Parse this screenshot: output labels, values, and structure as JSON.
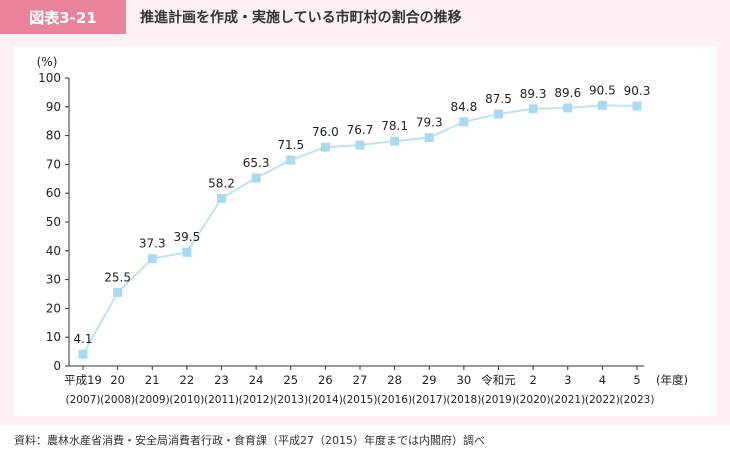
{
  "figure": {
    "badge": "図表3-21",
    "title": "推進計画を作成・実施している市町村の割合の推移",
    "source": "資料：農林水産省消費・安全局消費者行政・食育課（平成27（2015）年度までは内閣府）調べ"
  },
  "colors": {
    "badge_bg": "#e8839b",
    "frame_bg": "#fdf1f3",
    "series_line": "#bfe3f2",
    "marker": "#a9dbf0"
  },
  "chart_data": {
    "type": "line",
    "title": "推進計画を作成・実施している市町村の割合の推移",
    "ylabel": "(%)",
    "xlabel": "(年度)",
    "ylim": [
      0,
      100
    ],
    "yticks": [
      0,
      10,
      20,
      30,
      40,
      50,
      60,
      70,
      80,
      90,
      100
    ],
    "grid": false,
    "categories": [
      "平成19",
      "20",
      "21",
      "22",
      "23",
      "24",
      "25",
      "26",
      "27",
      "28",
      "29",
      "30",
      "令和元",
      "2",
      "3",
      "4",
      "5"
    ],
    "categories_western": [
      "(2007)",
      "(2008)",
      "(2009)",
      "(2010)",
      "(2011)",
      "(2012)",
      "(2013)",
      "(2014)",
      "(2015)",
      "(2016)",
      "(2017)",
      "(2018)",
      "(2019)",
      "(2020)",
      "(2021)",
      "(2022)",
      "(2023)"
    ],
    "values": [
      4.1,
      25.5,
      37.3,
      39.5,
      58.2,
      65.3,
      71.5,
      76.0,
      76.7,
      78.1,
      79.3,
      84.8,
      87.5,
      89.3,
      89.6,
      90.5,
      90.3
    ],
    "value_labels": [
      "4.1",
      "25.5",
      "37.3",
      "39.5",
      "58.2",
      "65.3",
      "71.5",
      "76.0",
      "76.7",
      "78.1",
      "79.3",
      "84.8",
      "87.5",
      "89.3",
      "89.6",
      "90.5",
      "90.3"
    ]
  }
}
